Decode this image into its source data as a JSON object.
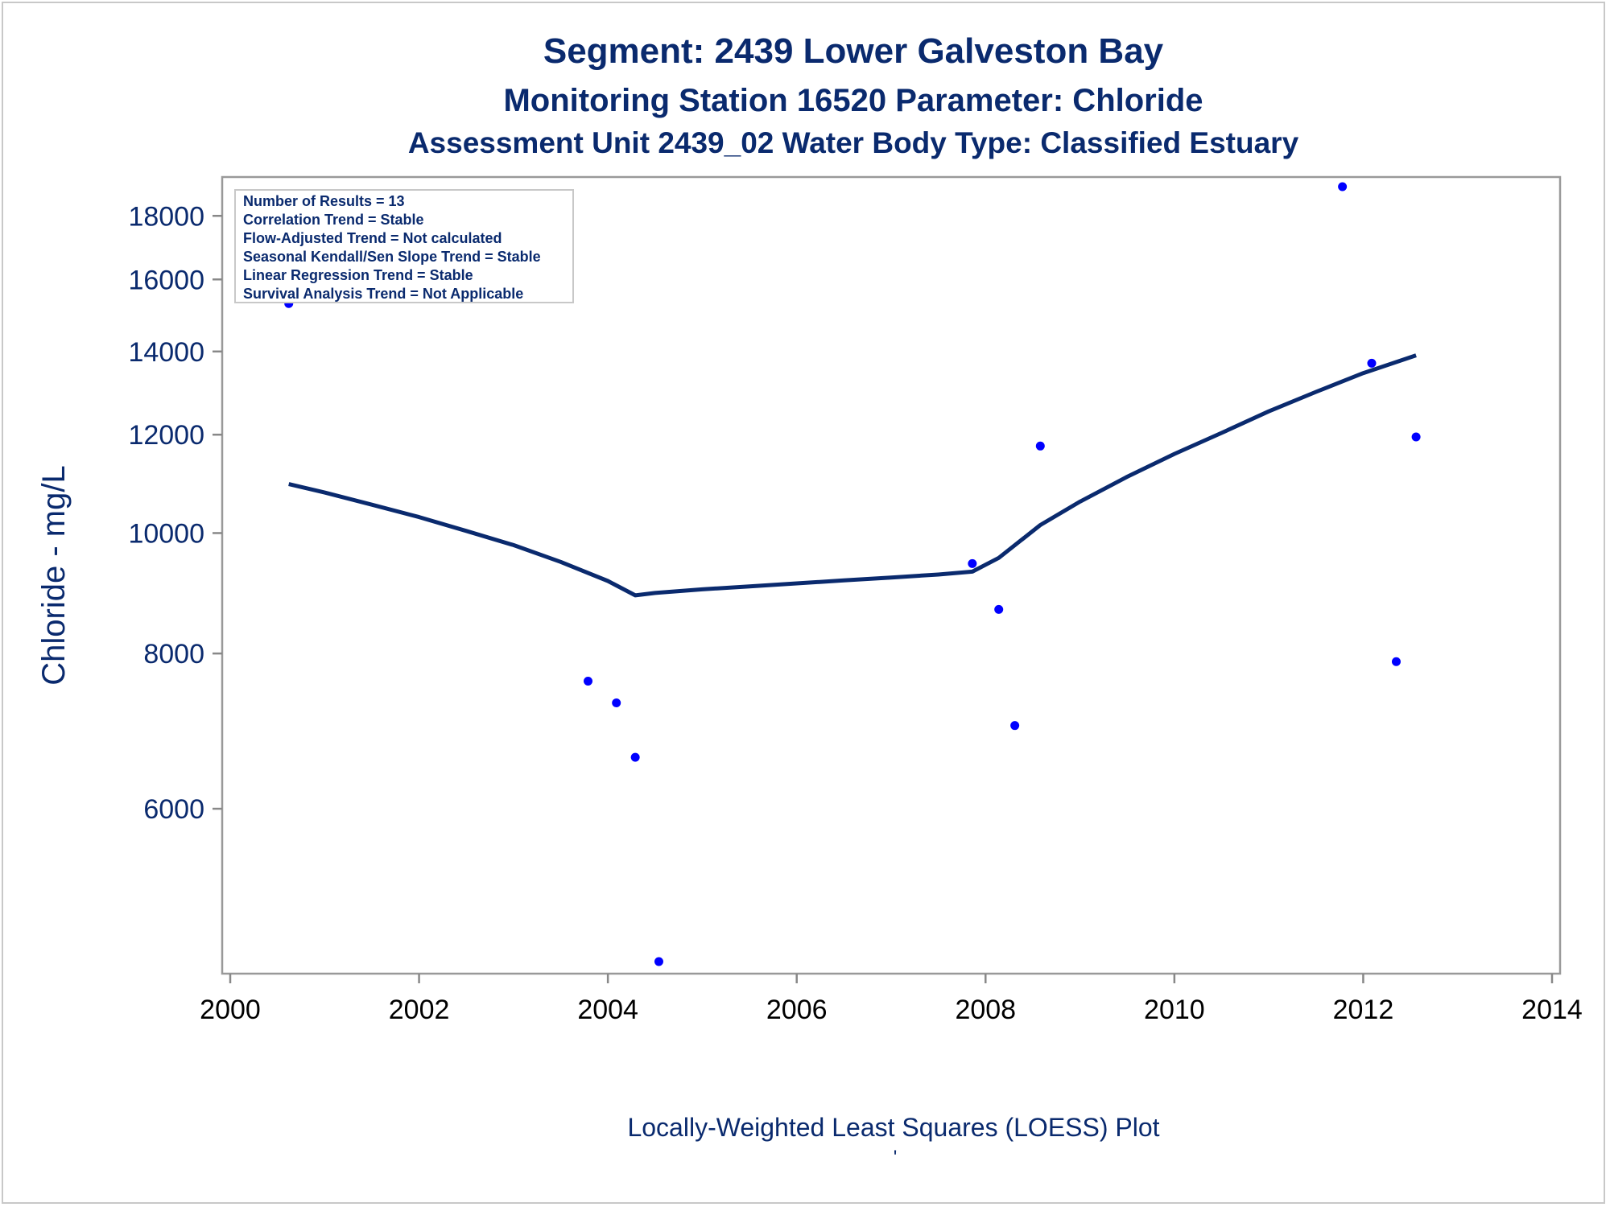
{
  "chart_data": {
    "type": "scatter",
    "title": "Segment: 2439  Lower Galveston Bay",
    "subtitle": "Monitoring Station 16520 Parameter: Chloride",
    "subtitle2": "Assessment Unit 2439_02   Water Body Type: Classified Estuary",
    "xlabel": "",
    "ylabel": "Chloride - mg/L",
    "footnote": "Locally-Weighted Least Squares (LOESS) Plot",
    "footnote_mark": "'",
    "y_scale": "log",
    "xlim": [
      2000,
      2014
    ],
    "ylim": [
      4500,
      19000
    ],
    "x_ticks": [
      "2000",
      "2002",
      "2004",
      "2006",
      "2008",
      "2010",
      "2012",
      "2014"
    ],
    "y_ticks": [
      "6000",
      "8000",
      "10000",
      "12000",
      "14000",
      "16000",
      "18000"
    ],
    "grid": false,
    "legend_position": "top-left",
    "info_box": [
      "Number of Results = 13",
      "Correlation Trend = Stable",
      "Flow-Adjusted Trend = Not calculated",
      "Seasonal Kendall/Sen Slope Trend = Stable",
      "Linear Regression Trend = Stable",
      "Survival Analysis Trend = Not Applicable"
    ],
    "series": [
      {
        "kind": "points",
        "x": [
          2000.62,
          2003.79,
          2004.09,
          2004.29,
          2004.54,
          2007.86,
          2008.14,
          2008.31,
          2008.58,
          2011.78,
          2012.09,
          2012.35,
          2012.56
        ],
        "y": [
          15300,
          7600,
          7300,
          6600,
          4520,
          9450,
          8680,
          7000,
          11750,
          19000,
          13700,
          7880,
          11950
        ]
      },
      {
        "kind": "line",
        "x": [
          2000.62,
          2001.0,
          2001.5,
          2002.0,
          2002.5,
          2003.0,
          2003.5,
          2004.0,
          2004.29,
          2004.5,
          2005.0,
          2005.5,
          2006.0,
          2006.5,
          2007.0,
          2007.5,
          2007.86,
          2008.14,
          2008.58,
          2009.0,
          2009.5,
          2010.0,
          2010.5,
          2011.0,
          2011.5,
          2012.0,
          2012.56
        ],
        "y": [
          10950,
          10780,
          10540,
          10300,
          10040,
          9780,
          9480,
          9150,
          8910,
          8950,
          9010,
          9060,
          9110,
          9160,
          9210,
          9260,
          9310,
          9550,
          10150,
          10600,
          11100,
          11580,
          12040,
          12530,
          12990,
          13450,
          13900
        ]
      }
    ],
    "colors": {
      "text": "#0a2a6e",
      "line": "#0a2a6e",
      "points": "#0000ff",
      "axis": "#888888"
    }
  }
}
